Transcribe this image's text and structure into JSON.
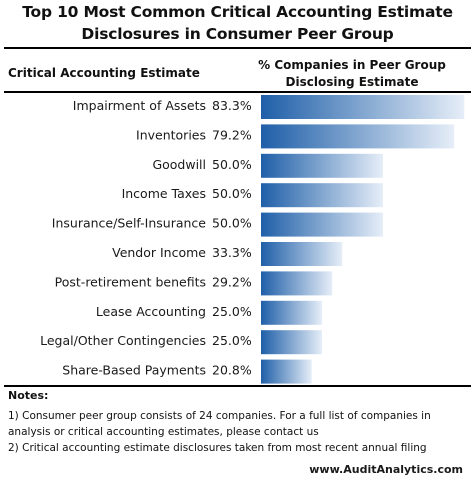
{
  "title": {
    "line1": "Top 10 Most Common Critical Accounting Estimate",
    "line2": "Disclosures in Consumer Peer Group"
  },
  "columns": {
    "left": "Critical Accounting Estimate",
    "right_line1": "% Companies in Peer Group",
    "right_line2": "Disclosing Estimate"
  },
  "colors": {
    "bar_dark": "#1f5fa8",
    "bar_light": "#e6eef8",
    "rule": "#000000"
  },
  "chart_data": {
    "type": "bar",
    "orientation": "horizontal",
    "categories": [
      "Impairment of Assets",
      "Inventories",
      "Goodwill",
      "Income Taxes",
      "Insurance/Self-Insurance",
      "Vendor Income",
      "Post-retirement benefits",
      "Lease Accounting",
      "Legal/Other Contingencies",
      "Share-Based Payments"
    ],
    "values": [
      83.3,
      79.2,
      50.0,
      50.0,
      50.0,
      33.3,
      29.2,
      25.0,
      25.0,
      20.8
    ],
    "value_labels": [
      "83.3%",
      "79.2%",
      "50.0%",
      "50.0%",
      "50.0%",
      "33.3%",
      "29.2%",
      "25.0%",
      "25.0%",
      "20.8%"
    ],
    "xlim": [
      0,
      100
    ],
    "grid": false,
    "legend": "none"
  },
  "notes": {
    "heading": "Notes:",
    "items": [
      "1) Consumer peer group consists of 24 companies. For a full list of companies in analysis or critical accounting estimates, please contact us",
      "2) Critical accounting estimate disclosures taken from most recent annual filing"
    ]
  },
  "footer": {
    "url": "www.AuditAnalytics.com"
  }
}
